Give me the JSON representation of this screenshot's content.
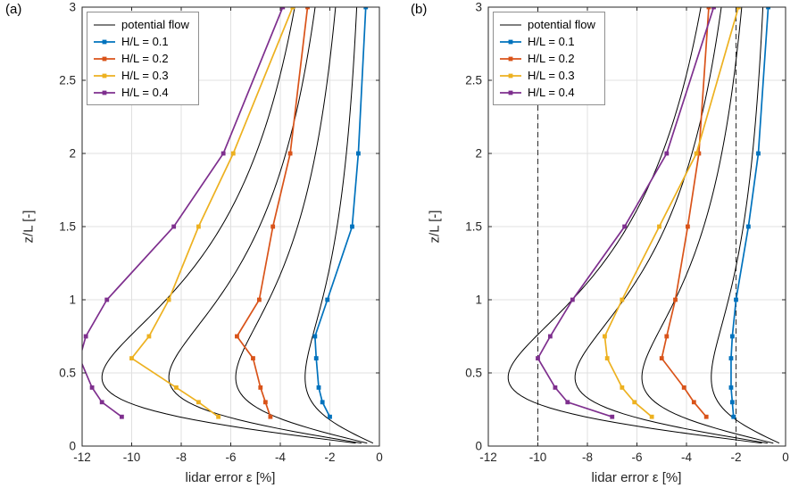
{
  "legend": {
    "entries": [
      {
        "label": "potential flow",
        "color": "#000000",
        "marker": false
      },
      {
        "label": "H/L = 0.1",
        "color": "#0072BD",
        "marker": true
      },
      {
        "label": "H/L = 0.2",
        "color": "#D95319",
        "marker": true
      },
      {
        "label": "H/L = 0.3",
        "color": "#EDB120",
        "marker": true
      },
      {
        "label": "H/L = 0.4",
        "color": "#7E2F8E",
        "marker": true
      }
    ]
  },
  "axes": {
    "xticks": [
      -12,
      -10,
      -8,
      -6,
      -4,
      -2,
      0
    ],
    "yticks": [
      0,
      0.5,
      1,
      1.5,
      2,
      2.5,
      3
    ],
    "grid": true,
    "grid_color": "#e0e0e0",
    "box_color": "#262626"
  },
  "chart_data": [
    {
      "type": "line",
      "panel_label": "(a)",
      "xlabel": "lidar error ε [%]",
      "ylabel": "z/L [-]",
      "xlim": [
        -12,
        0
      ],
      "ylim": [
        0,
        3
      ],
      "legend_position": "top-left",
      "potential_flow": {
        "label": "potential flow",
        "color": "#000000",
        "model": "eps(z) = -peak * (z/(z^2+c)) * 2*sqrt(c)  (peak at z = sqrt(c))",
        "c": 0.22,
        "peak_errors": [
          3.0,
          5.8,
          8.5,
          11.2
        ]
      },
      "z": [
        0.2,
        0.3,
        0.4,
        0.6,
        0.75,
        1,
        1.5,
        2,
        3
      ],
      "series": [
        {
          "name": "H/L = 0.1",
          "color": "#0072BD",
          "eps": [
            -2.0,
            -2.3,
            -2.45,
            -2.55,
            -2.6,
            -2.1,
            -1.1,
            -0.85,
            -0.55
          ]
        },
        {
          "name": "H/L = 0.2",
          "color": "#D95319",
          "eps": [
            -4.4,
            -4.6,
            -4.8,
            -5.1,
            -5.75,
            -4.85,
            -4.3,
            -3.6,
            -2.9
          ]
        },
        {
          "name": "H/L = 0.3",
          "color": "#EDB120",
          "eps": [
            -6.5,
            -7.3,
            -8.2,
            -10.0,
            -9.3,
            -8.5,
            -7.3,
            -5.9,
            -3.5
          ]
        },
        {
          "name": "H/L = 0.4",
          "color": "#7E2F8E",
          "eps": [
            -10.4,
            -11.2,
            -11.6,
            -12.1,
            -11.85,
            -11.0,
            -8.3,
            -6.3,
            -3.9
          ]
        }
      ],
      "dashed_lines_x": []
    },
    {
      "type": "line",
      "panel_label": "(b)",
      "xlabel": "lidar error ε [%]",
      "ylabel": "z/L [-]",
      "xlim": [
        -12,
        0
      ],
      "ylim": [
        0,
        3
      ],
      "legend_position": "top-left",
      "potential_flow": {
        "label": "potential flow",
        "color": "#000000",
        "model": "eps(z) = -peak * (z/(z^2+c)) * 2*sqrt(c)  (peak at z = sqrt(c))",
        "c": 0.22,
        "peak_errors": [
          3.0,
          5.8,
          8.5,
          11.2
        ]
      },
      "z": [
        0.2,
        0.3,
        0.4,
        0.6,
        0.75,
        1,
        1.5,
        2,
        3
      ],
      "series": [
        {
          "name": "H/L = 0.1",
          "color": "#0072BD",
          "eps": [
            -2.1,
            -2.15,
            -2.2,
            -2.2,
            -2.15,
            -2.0,
            -1.5,
            -1.1,
            -0.7
          ]
        },
        {
          "name": "H/L = 0.2",
          "color": "#D95319",
          "eps": [
            -3.2,
            -3.7,
            -4.1,
            -5.0,
            -4.8,
            -4.45,
            -3.95,
            -3.5,
            -3.1
          ]
        },
        {
          "name": "H/L = 0.3",
          "color": "#EDB120",
          "eps": [
            -5.4,
            -6.1,
            -6.6,
            -7.2,
            -7.3,
            -6.6,
            -5.1,
            -3.6,
            -1.9
          ]
        },
        {
          "name": "H/L = 0.4",
          "color": "#7E2F8E",
          "eps": [
            -7.0,
            -8.8,
            -9.3,
            -10.0,
            -9.5,
            -8.6,
            -6.5,
            -4.8,
            -2.9
          ]
        }
      ],
      "dashed_lines_x": [
        -10,
        -2
      ]
    }
  ]
}
